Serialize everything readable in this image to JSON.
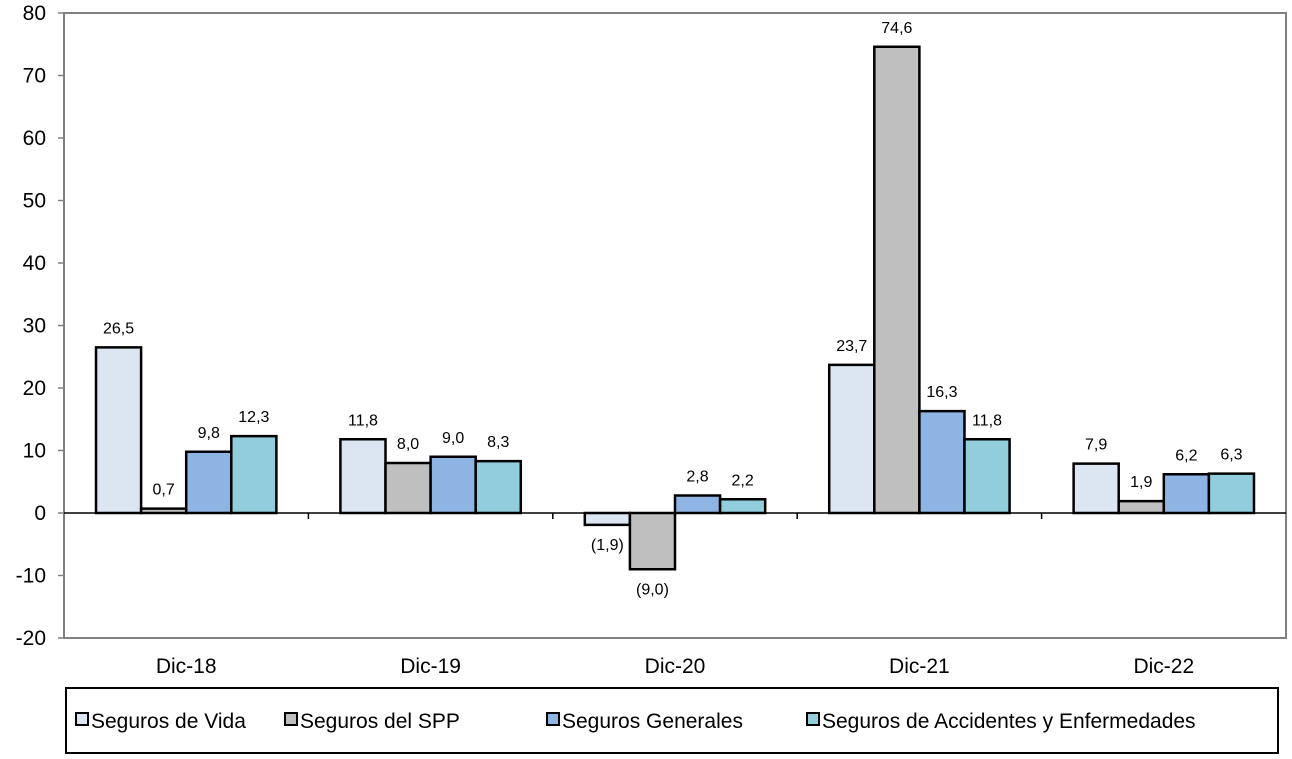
{
  "chart_data": {
    "type": "bar",
    "categories": [
      "Dic-18",
      "Dic-19",
      "Dic-20",
      "Dic-21",
      "Dic-22"
    ],
    "series": [
      {
        "name": "Seguros de Vida",
        "values": [
          26.5,
          11.8,
          -1.9,
          23.7,
          7.9
        ],
        "labels": [
          "26,5",
          "11,8",
          "(1,9)",
          "23,7",
          "7,9"
        ],
        "color": "#dce6f2"
      },
      {
        "name": "Seguros del SPP",
        "values": [
          0.7,
          8.0,
          -9.0,
          74.6,
          1.9
        ],
        "labels": [
          "0,7",
          "8,0",
          "(9,0)",
          "74,6",
          "1,9"
        ],
        "color": "#bfbfbf"
      },
      {
        "name": "Seguros Generales",
        "values": [
          9.8,
          9.0,
          2.8,
          16.3,
          6.2
        ],
        "labels": [
          "9,8",
          "9,0",
          "2,8",
          "16,3",
          "6,2"
        ],
        "color": "#8eb4e3"
      },
      {
        "name": "Seguros de Accidentes y Enfermedades",
        "values": [
          12.3,
          8.3,
          2.2,
          11.8,
          6.3
        ],
        "labels": [
          "12,3",
          "8,3",
          "2,2",
          "11,8",
          "6,3"
        ],
        "color": "#92cddc"
      }
    ],
    "ylim": [
      -20,
      80
    ],
    "yticks": [
      "-20",
      "-10",
      "0",
      "10",
      "20",
      "30",
      "40",
      "50",
      "60",
      "70",
      "80"
    ],
    "grid": false,
    "legend_position": "bottom"
  }
}
